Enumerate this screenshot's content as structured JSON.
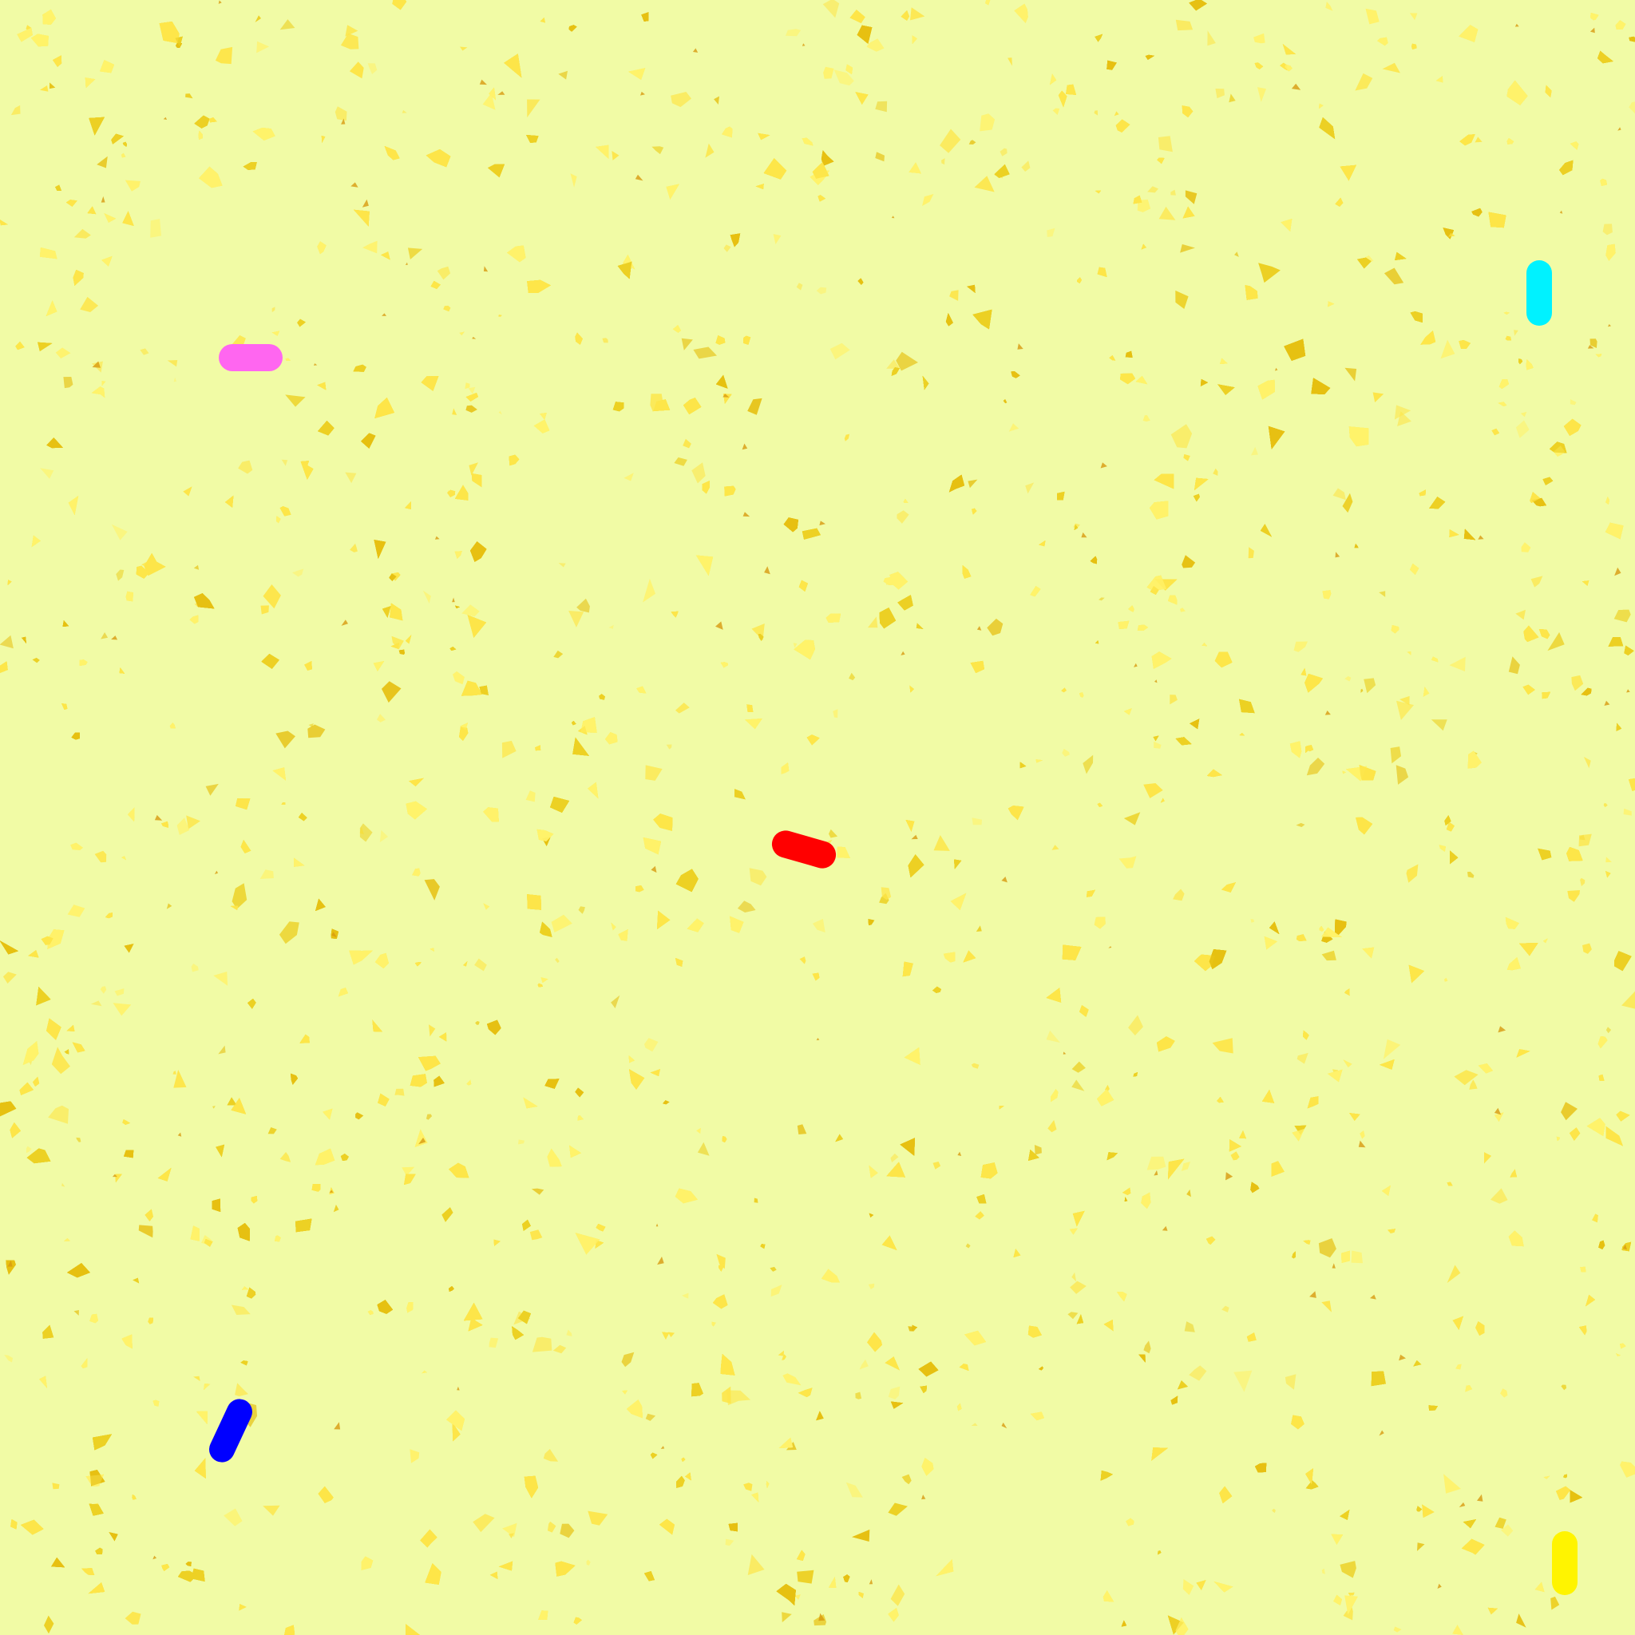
{
  "colors": {
    "background": "#f1fba5",
    "speckle_light": "#fff26a",
    "speckle_mid": "#fde549",
    "speckle_dark": "#ecd024",
    "speckle_deep": "#e6c012",
    "speckle_accent": "#d89a10"
  },
  "objects": [
    {
      "name": "pink-capsule",
      "color": "#ff66f0"
    },
    {
      "name": "cyan-capsule",
      "color": "#00f2ff"
    },
    {
      "name": "red-capsule",
      "color": "#ff0000"
    },
    {
      "name": "blue-capsule",
      "color": "#0000ff"
    },
    {
      "name": "yellow-capsule",
      "color": "#fff400"
    }
  ]
}
